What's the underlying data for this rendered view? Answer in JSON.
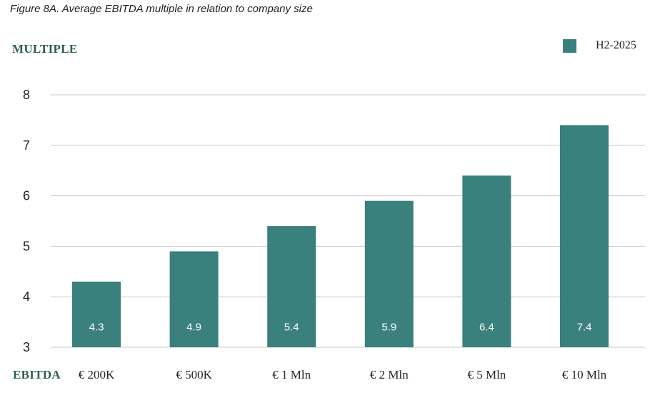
{
  "chart_data": {
    "type": "bar",
    "title": "Figure 8A. Average EBITDA multiple in relation to company size",
    "ylabel": "MULTIPLE",
    "xlabel": "EBITDA",
    "categories": [
      "€ 200K",
      "€ 500K",
      "€ 1 Mln",
      "€ 2 Mln",
      "€ 5 Mln",
      "€ 10 Mln"
    ],
    "series": [
      {
        "name": "H2-2025",
        "values": [
          4.3,
          4.9,
          5.4,
          5.9,
          6.4,
          7.4
        ],
        "labels": [
          "4.3",
          "4.9",
          "5.4",
          "5.9",
          "6.4",
          "7.4"
        ]
      }
    ],
    "ylim": [
      3,
      8
    ],
    "yticks": [
      "3",
      "4",
      "5",
      "6",
      "7",
      "8"
    ],
    "grid": true,
    "legend_position": "top-right",
    "colors": {
      "bar": "#3a807c",
      "grid": "#c8c8c8",
      "axis_title": "#2e5e4e"
    }
  }
}
